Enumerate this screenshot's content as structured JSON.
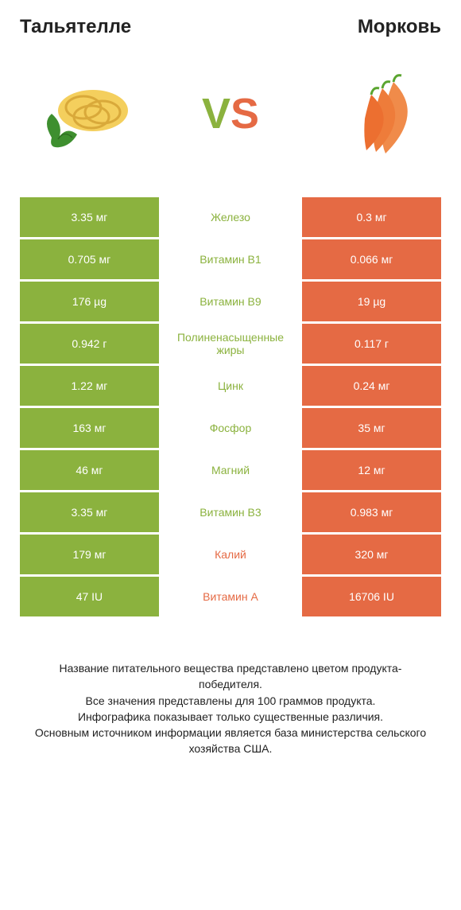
{
  "header": {
    "left_title": "Тальятелле",
    "right_title": "Морковь",
    "vs_v": "V",
    "vs_s": "S"
  },
  "colors": {
    "left": "#8bb23e",
    "right": "#e56a44",
    "bg": "#ffffff"
  },
  "rows": [
    {
      "label": "Железо",
      "left": "3.35 мг",
      "right": "0.3 мг",
      "winner": "left"
    },
    {
      "label": "Витамин B1",
      "left": "0.705 мг",
      "right": "0.066 мг",
      "winner": "left"
    },
    {
      "label": "Витамин B9",
      "left": "176 µg",
      "right": "19 µg",
      "winner": "left"
    },
    {
      "label": "Полиненасыщенные жиры",
      "left": "0.942 г",
      "right": "0.117 г",
      "winner": "left"
    },
    {
      "label": "Цинк",
      "left": "1.22 мг",
      "right": "0.24 мг",
      "winner": "left"
    },
    {
      "label": "Фосфор",
      "left": "163 мг",
      "right": "35 мг",
      "winner": "left"
    },
    {
      "label": "Магний",
      "left": "46 мг",
      "right": "12 мг",
      "winner": "left"
    },
    {
      "label": "Витамин B3",
      "left": "3.35 мг",
      "right": "0.983 мг",
      "winner": "left"
    },
    {
      "label": "Калий",
      "left": "179 мг",
      "right": "320 мг",
      "winner": "right"
    },
    {
      "label": "Витамин A",
      "left": "47 IU",
      "right": "16706 IU",
      "winner": "right"
    }
  ],
  "footer": {
    "text": "Название питательного вещества представлено цветом продукта-победителя.\nВсе значения представлены для 100 граммов продукта.\nИнфографика показывает только существенные различия.\nОсновным источником информации является база министерства сельского хозяйства США."
  }
}
